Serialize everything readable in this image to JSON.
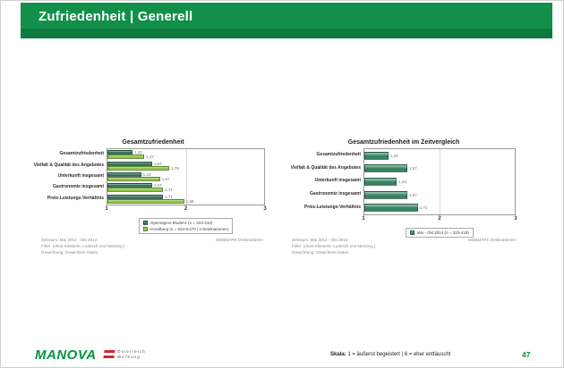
{
  "header": {
    "title": "Zufriedenheit | Generell"
  },
  "footnotes": {
    "zeitraum": "Zeitraum: Mai 2014 - Okt 2014",
    "filter": "Filter: (ohne Klösterle, Ludesch und Nenzing )",
    "gewichtung": "Gewichtung: Gewichtete Daten",
    "source": "WEBMARK Destinationen"
  },
  "footer": {
    "logo": "MANOVA",
    "partner": {
      "line1": "Österreich",
      "line2": "Werbung"
    },
    "scale_label": "Skala:",
    "scale_text": "1 = äußerst begeistert | 6 = eher enttäuscht",
    "page_number": "47"
  },
  "colors": {
    "header_green": "#12904a",
    "header_band": "#0d7a3e",
    "series_dark": "#2e7054",
    "series_light": "#8cc63f",
    "single_series": "#358360",
    "logo_green": "#00953f",
    "flag_red": "#d22630"
  },
  "chart_data": [
    {
      "type": "bar",
      "orientation": "horizontal",
      "title": "Gesamtzufriedenheit",
      "categories": [
        "Gesamtzufriedenheit",
        "Vielfalt & Qualität des Angebotes",
        "Unterkunft insgesamt",
        "Gastronomie insgesamt",
        "Preis-Leistungs-Verhältnis"
      ],
      "series": [
        {
          "name": "Alpenregion Bludenz (n = 323-418)",
          "color": "#2e7054",
          "values": [
            1.32,
            1.57,
            1.43,
            1.57,
            1.71
          ],
          "labels": [
            "1,32",
            "1,57",
            "1,43",
            "1,57",
            "1,71"
          ]
        },
        {
          "name": "Vorarlberg (n = 504-6.270 | 4 Destinationen)",
          "color": "#8cc63f",
          "values": [
            1.47,
            1.79,
            1.67,
            1.71,
            1.98
          ],
          "labels": [
            "1,47",
            "1,79",
            "1,67",
            "1,71",
            "1,98"
          ]
        }
      ],
      "xlim": [
        1,
        3
      ],
      "ticks": [
        "1",
        "2",
        "3"
      ],
      "grid": true,
      "legend_position": "bottom"
    },
    {
      "type": "bar",
      "orientation": "horizontal",
      "title": "Gesamtzufriedenheit im Zeitvergleich",
      "categories": [
        "Gesamtzufriedenheit",
        "Vielfalt & Qualität des Angebotes",
        "Unterkunft insgesamt",
        "Gastronomie insgesamt",
        "Preis-Leistungs-Verhältnis"
      ],
      "series": [
        {
          "name": "Mai - Okt 2014 (n = 323-418)",
          "color": "#358360",
          "values": [
            1.32,
            1.57,
            1.43,
            1.57,
            1.71
          ],
          "labels": [
            "1,32",
            "1,57",
            "1,43",
            "1,57",
            "1,71"
          ]
        }
      ],
      "xlim": [
        1,
        3
      ],
      "ticks": [
        "1",
        "2",
        "3"
      ],
      "grid": true,
      "legend_position": "bottom"
    }
  ]
}
